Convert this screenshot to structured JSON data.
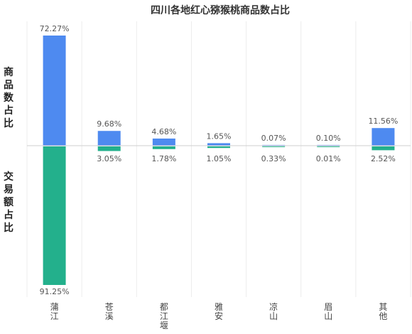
{
  "chart_data": {
    "type": "bar",
    "title": "四川各地红心猕猴桃商品数占比",
    "upper_label": "商品数占比",
    "lower_label": "交易额占比",
    "categories": [
      "蒲江",
      "苍溪",
      "都江堰",
      "雅安",
      "凉山",
      "眉山",
      "其他"
    ],
    "series": [
      {
        "name": "商品数占比",
        "values": [
          72.27,
          9.68,
          4.68,
          1.65,
          0.07,
          0.1,
          11.56
        ],
        "color": "#4e8af0"
      },
      {
        "name": "交易额占比",
        "values": [
          91.25,
          3.05,
          1.78,
          1.05,
          0.33,
          0.01,
          2.52
        ],
        "color": "#23b08c"
      }
    ],
    "value_labels_upper": [
      "72.27%",
      "9.68%",
      "4.68%",
      "1.65%",
      "0.07%",
      "0.10%",
      "11.56%"
    ],
    "value_labels_lower": [
      "91.25%",
      "3.05%",
      "1.78%",
      "1.05%",
      "0.33%",
      "0.01%",
      "2.52%"
    ],
    "grid": true,
    "legend": "none"
  }
}
